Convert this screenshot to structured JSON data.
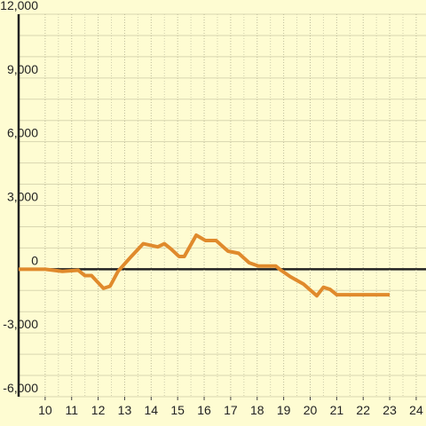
{
  "chart_data": {
    "type": "line",
    "x": [
      9.0,
      10.0,
      10.65,
      11.25,
      11.5,
      11.75,
      11.9,
      12.2,
      12.45,
      12.75,
      13.25,
      13.7,
      14.25,
      14.5,
      14.75,
      15.05,
      15.25,
      15.7,
      16.05,
      16.45,
      16.9,
      17.3,
      17.7,
      18.05,
      18.7,
      18.9,
      19.25,
      19.75,
      20.25,
      20.5,
      20.75,
      21.0,
      23.0
    ],
    "series": [
      {
        "color": "#e08a2c",
        "values": [
          0,
          0,
          -100,
          -50,
          -300,
          -300,
          -500,
          -900,
          -800,
          -100,
          600,
          1200,
          1050,
          1200,
          950,
          600,
          600,
          1600,
          1350,
          1350,
          850,
          750,
          300,
          150,
          150,
          -50,
          -350,
          -700,
          -1250,
          -850,
          -950,
          -1200,
          -1200
        ]
      }
    ],
    "xlim": [
      9,
      24.37
    ],
    "xticks": [
      10,
      11,
      12,
      13,
      14,
      15,
      16,
      17,
      18,
      19,
      20,
      21,
      22,
      23,
      24
    ],
    "ylim": [
      -6000,
      12000
    ],
    "yticks": [
      {
        "value": -6000,
        "label": "-6,000"
      },
      {
        "value": -3000,
        "label": "-3,000"
      },
      0,
      {
        "value": 3000,
        "label": "3,000"
      },
      {
        "value": 6000,
        "label": "6,000"
      },
      {
        "value": 9000,
        "label": "9,000"
      },
      {
        "value": 12000,
        "label": "12,000"
      }
    ],
    "grid": true
  }
}
